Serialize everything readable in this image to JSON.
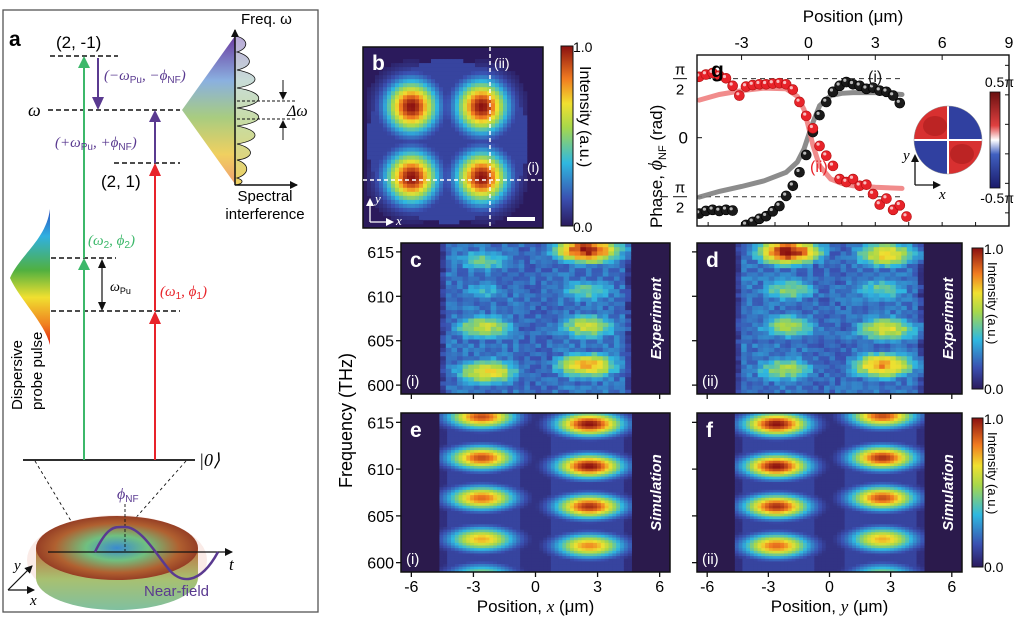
{
  "figure": {
    "panel_a": {
      "letter": "a",
      "levels": {
        "top": "(2, -1)",
        "omega": "ω",
        "mid": "(2, 1)",
        "ground": "|0⟩"
      },
      "transitions": {
        "down": "(−ω",
        "down_sub": "Pu",
        "down_rest": ", −ϕ",
        "down_sub2": "NF",
        "up": "(+ω",
        "up_sub": "Pu",
        "up_rest": ", +ϕ",
        "up_sub2": "NF",
        "green": "(ω",
        "green_sub": "2",
        "green_rest": ", ϕ",
        "green_sub2": "2",
        "red": "(ω",
        "red_sub": "1",
        "red_rest": ", ϕ",
        "red_sub2": "1",
        "pump": "ω",
        "pump_sub": "Pu"
      },
      "spectral_axis": "Freq. ω",
      "spectral_label_1": "Spectral",
      "spectral_label_2": "interference",
      "delta": "Δω",
      "probe_label_1": "Dispersive",
      "probe_label_2": "probe pulse",
      "phi_nf": "ϕ",
      "phi_nf_sub": "NF",
      "near_field": "Near-field",
      "axis_t": "t",
      "axis_x": "x",
      "axis_y": "y"
    },
    "panel_b": {
      "letter": "b",
      "cut_i": "(i)",
      "cut_ii": "(ii)",
      "axis_x": "x",
      "axis_y": "y",
      "colorbar_label": "Intensity (a.u.)",
      "colorbar_max": "1.0",
      "colorbar_min": "0.0"
    }
  },
  "chart_data": [
    {
      "id": "g",
      "type": "scatter",
      "title": "",
      "panel_letter": "g",
      "xlabel": "Position (μm)",
      "ylabel_prefix": "Phase, ",
      "ylabel_symbol": "ϕ",
      "ylabel_sub": "NF",
      "ylabel_suffix": " (rad)",
      "xlim": [
        -5,
        9
      ],
      "ylim": [
        -2.35,
        2.2
      ],
      "xticks": [
        -3,
        0,
        3,
        6,
        9
      ],
      "xtick_labels": [
        "-3",
        "0",
        "3",
        "6",
        "9"
      ],
      "yticks": [
        1.5708,
        0,
        -1.5708
      ],
      "ytick_labels": [
        "π/2",
        "0",
        "−π/2"
      ],
      "reference_lines": [
        1.5708,
        -1.5708
      ],
      "series": [
        {
          "name": "(i)",
          "color": "#1a1a1a",
          "x": [
            -4.9,
            -4.6,
            -4.3,
            -4.0,
            -3.7,
            -3.4,
            -2.8,
            -2.5,
            -2.2,
            -1.9,
            -1.6,
            -1.3,
            -1.0,
            -0.7,
            -0.4,
            -0.1,
            0.2,
            0.5,
            0.8,
            1.1,
            1.4,
            1.7,
            2.0,
            2.3,
            2.6,
            2.9,
            3.2,
            3.5,
            3.8,
            4.1
          ],
          "y": [
            -2.02,
            -1.95,
            -1.92,
            -1.95,
            -1.92,
            -1.94,
            -2.32,
            -2.24,
            -2.16,
            -2.09,
            -1.96,
            -1.82,
            -1.55,
            -1.28,
            -0.92,
            -0.46,
            0.15,
            0.6,
            0.95,
            1.22,
            1.38,
            1.48,
            1.42,
            1.38,
            1.3,
            1.33,
            1.25,
            1.22,
            1.12,
            0.92
          ],
          "fit_x": [
            -4.9,
            -4.0,
            -3.0,
            -2.0,
            -1.0,
            -0.5,
            -0.2,
            0.0,
            0.2,
            0.5,
            1.0,
            1.5,
            2.0,
            3.0,
            4.2
          ],
          "fit_y": [
            -1.58,
            -1.43,
            -1.3,
            -1.15,
            -0.92,
            -0.65,
            -0.3,
            0.05,
            0.4,
            0.85,
            1.12,
            1.18,
            1.2,
            1.2,
            1.15
          ]
        },
        {
          "name": "(ii)",
          "color": "#e8232a",
          "x": [
            -4.9,
            -4.6,
            -4.3,
            -4.0,
            -3.7,
            -3.4,
            -3.1,
            -2.8,
            -2.5,
            -2.2,
            -1.9,
            -1.6,
            -1.3,
            -1.0,
            -0.7,
            -0.4,
            -0.1,
            0.2,
            0.5,
            0.8,
            1.1,
            1.4,
            1.7,
            2.0,
            2.3,
            2.6,
            2.9,
            3.2,
            3.5,
            3.8,
            4.1,
            4.4
          ],
          "y": [
            1.62,
            1.68,
            1.72,
            1.65,
            1.58,
            1.38,
            1.12,
            1.36,
            1.4,
            1.42,
            1.42,
            1.44,
            1.45,
            1.42,
            1.28,
            0.95,
            0.58,
            0.25,
            -0.22,
            -0.48,
            -0.75,
            -1.1,
            -1.18,
            -1.1,
            -1.28,
            -1.25,
            -1.5,
            -1.78,
            -1.62,
            -1.92,
            -1.8,
            -2.1
          ],
          "fit_x": [
            -4.9,
            -4.0,
            -3.0,
            -2.0,
            -1.0,
            -0.5,
            -0.2,
            0.0,
            0.2,
            0.5,
            1.0,
            1.5,
            2.0,
            3.0,
            4.2
          ],
          "fit_y": [
            1.0,
            1.15,
            1.25,
            1.32,
            1.3,
            1.1,
            0.75,
            0.3,
            -0.2,
            -0.75,
            -1.1,
            -1.22,
            -1.28,
            -1.32,
            -1.35
          ]
        }
      ],
      "inset": {
        "colorbar_max": "0.5π",
        "colorbar_min": "-0.5π",
        "axis_x": "x",
        "axis_y": "y"
      }
    },
    {
      "id": "c",
      "type": "heatmap",
      "panel_letter": "c",
      "cut": "(i)",
      "tag": "Experiment",
      "xlim": [
        -6.5,
        6.5
      ],
      "ylim": [
        599,
        616
      ],
      "yticks": [
        600,
        605,
        610,
        615
      ],
      "ytick_labels": [
        "600",
        "605",
        "610",
        "615"
      ],
      "xticks": [
        -6,
        -3,
        0,
        3,
        6
      ],
      "blobs": [
        {
          "x": -2.5,
          "f": 614.0,
          "a": 0.45
        },
        {
          "x": 2.5,
          "f": 615.2,
          "a": 1.0
        },
        {
          "x": -2.5,
          "f": 610.5,
          "a": 0.35
        },
        {
          "x": 2.5,
          "f": 610.6,
          "a": 0.45
        },
        {
          "x": -2.5,
          "f": 606.5,
          "a": 0.6
        },
        {
          "x": 2.5,
          "f": 606.6,
          "a": 0.6
        },
        {
          "x": -2.3,
          "f": 601.5,
          "a": 0.7
        },
        {
          "x": 2.5,
          "f": 602.2,
          "a": 0.75
        }
      ],
      "noisy": true
    },
    {
      "id": "d",
      "type": "heatmap",
      "panel_letter": "d",
      "cut": "(ii)",
      "tag": "Experiment",
      "xlim": [
        -6.5,
        6.5
      ],
      "ylim": [
        599,
        616
      ],
      "yticks": [
        600,
        605,
        610,
        615
      ],
      "xticks": [
        -6,
        -3,
        0,
        3,
        6
      ],
      "blobs": [
        {
          "x": -2.0,
          "f": 615.0,
          "a": 1.0
        },
        {
          "x": 2.8,
          "f": 614.7,
          "a": 0.7
        },
        {
          "x": -2.0,
          "f": 610.7,
          "a": 0.5
        },
        {
          "x": 2.6,
          "f": 610.8,
          "a": 0.45
        },
        {
          "x": -2.0,
          "f": 606.6,
          "a": 0.55
        },
        {
          "x": 2.8,
          "f": 606.3,
          "a": 0.65
        },
        {
          "x": -2.2,
          "f": 601.8,
          "a": 0.55
        },
        {
          "x": 2.6,
          "f": 602.2,
          "a": 0.8
        }
      ],
      "colorbar_label": "Intensity (a.u.)",
      "colorbar_max": "1.0",
      "colorbar_min": "0.0",
      "noisy": true
    },
    {
      "id": "e",
      "type": "heatmap",
      "panel_letter": "e",
      "cut": "(i)",
      "tag": "Simulation",
      "xlim": [
        -6.5,
        6.5
      ],
      "ylim": [
        599,
        616
      ],
      "yticks": [
        600,
        605,
        610,
        615
      ],
      "ytick_labels": [
        "600",
        "605",
        "610",
        "615"
      ],
      "xticks": [
        -6,
        -3,
        0,
        3,
        6
      ],
      "xtick_labels": [
        "-6",
        "-3",
        "0",
        "3",
        "6"
      ],
      "xlabel": "Position, x (μm)",
      "blobs": [
        {
          "x": -2.6,
          "f": 615.6,
          "a": 0.9
        },
        {
          "x": 2.6,
          "f": 614.8,
          "a": 1.0
        },
        {
          "x": -2.6,
          "f": 611.2,
          "a": 0.9
        },
        {
          "x": 2.6,
          "f": 610.3,
          "a": 1.0
        },
        {
          "x": -2.6,
          "f": 606.9,
          "a": 0.85
        },
        {
          "x": 2.6,
          "f": 606.0,
          "a": 0.95
        },
        {
          "x": -2.6,
          "f": 602.5,
          "a": 0.75
        },
        {
          "x": 2.6,
          "f": 601.8,
          "a": 0.8
        },
        {
          "x": -2.6,
          "f": 598.6,
          "a": 0.55
        }
      ],
      "noisy": false
    },
    {
      "id": "f",
      "type": "heatmap",
      "panel_letter": "f",
      "cut": "(ii)",
      "tag": "Simulation",
      "xlim": [
        -6.5,
        6.5
      ],
      "ylim": [
        599,
        616
      ],
      "yticks": [
        600,
        605,
        610,
        615
      ],
      "xticks": [
        -6,
        -3,
        0,
        3,
        6
      ],
      "xtick_labels": [
        "-6",
        "-3",
        "0",
        "3",
        "6"
      ],
      "xlabel": "Position, y (μm)",
      "blobs": [
        {
          "x": -2.6,
          "f": 614.8,
          "a": 1.0
        },
        {
          "x": 2.6,
          "f": 615.7,
          "a": 0.9
        },
        {
          "x": -2.6,
          "f": 610.3,
          "a": 1.0
        },
        {
          "x": 2.6,
          "f": 611.2,
          "a": 0.95
        },
        {
          "x": -2.6,
          "f": 606.0,
          "a": 0.95
        },
        {
          "x": 2.6,
          "f": 606.9,
          "a": 0.9
        },
        {
          "x": -2.6,
          "f": 601.8,
          "a": 0.85
        },
        {
          "x": 2.6,
          "f": 602.5,
          "a": 0.75
        },
        {
          "x": 2.6,
          "f": 598.6,
          "a": 0.55
        }
      ],
      "colorbar_label": "Intensity (a.u.)",
      "colorbar_max": "1.0",
      "colorbar_min": "0.0",
      "noisy": false
    }
  ],
  "shared": {
    "ylabel_cdef": "Frequency (THz)"
  }
}
